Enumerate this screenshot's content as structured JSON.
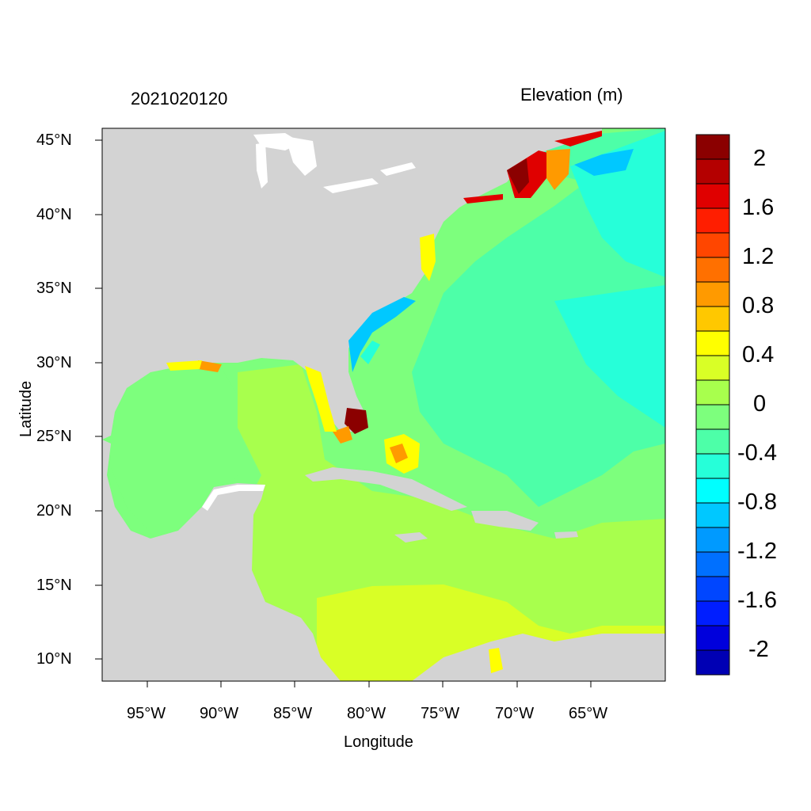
{
  "header": {
    "timestamp": "2021020120",
    "variable": "Elevation (m)"
  },
  "axes": {
    "xlabel": "Longitude",
    "ylabel": "Latitude",
    "x_ticks": [
      "95°W",
      "90°W",
      "85°W",
      "80°W",
      "75°W",
      "70°W",
      "65°W"
    ],
    "y_ticks": [
      "45°N",
      "40°N",
      "35°N",
      "30°N",
      "25°N",
      "20°N",
      "15°N",
      "10°N"
    ]
  },
  "colorbar": {
    "labels": [
      "2",
      "1.6",
      "1.2",
      "0.8",
      "0.4",
      "0",
      "-0.4",
      "-0.8",
      "-1.2",
      "-1.6",
      "-2"
    ],
    "colors": [
      "#8b0000",
      "#b40000",
      "#e00000",
      "#ff1e00",
      "#ff4600",
      "#ff7000",
      "#ff9a00",
      "#ffc800",
      "#ffff00",
      "#d9ff26",
      "#a8ff4d",
      "#7dff7d",
      "#4dffa8",
      "#26ffd9",
      "#00ffff",
      "#00c8ff",
      "#009aff",
      "#0070ff",
      "#0046ff",
      "#001eff",
      "#0000dc",
      "#0000b4"
    ]
  },
  "colors": {
    "land": "#d3d3d3",
    "ocean_base": "#7dff7d",
    "lake": "#ffffff"
  }
}
